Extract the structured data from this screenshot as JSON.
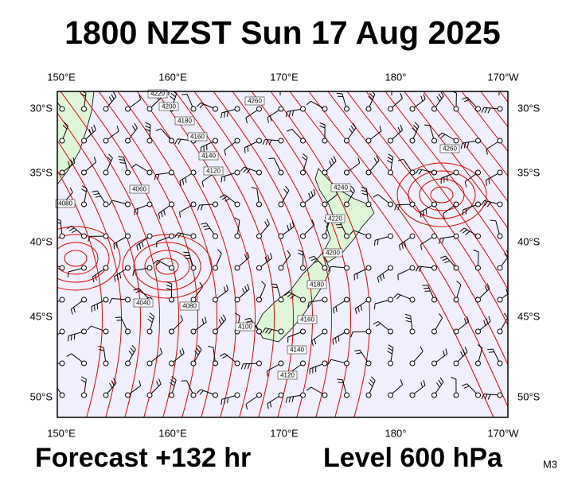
{
  "header": {
    "title": "1800 NZST Sun 17 Aug 2025"
  },
  "footer": {
    "forecast": "Forecast +132 hr",
    "level": "Level 600 hPa",
    "model": "M3"
  },
  "map": {
    "lon_labels": [
      "150°E",
      "160°E",
      "170°E",
      "180°",
      "170°W"
    ],
    "lat_labels": [
      "30°S",
      "35°S",
      "40°S",
      "45°S",
      "50°S"
    ],
    "contour_labels": [
      "4220",
      "4200",
      "4180",
      "4160",
      "4140",
      "4120",
      "4080",
      "4060",
      "4040",
      "4100",
      "4260",
      "4240",
      "4220",
      "4200",
      "4180",
      "4160",
      "4140",
      "4120",
      "4260",
      "4080"
    ]
  }
}
